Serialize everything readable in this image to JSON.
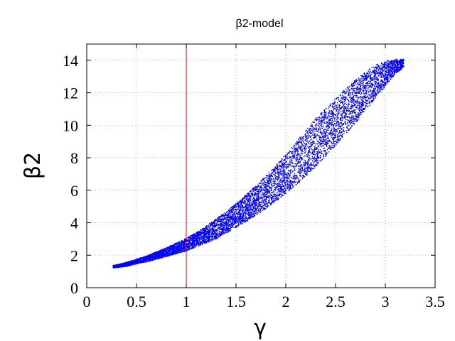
{
  "chart_data": {
    "type": "scatter",
    "title": "β2-model",
    "xlabel": "γ",
    "ylabel": "β2",
    "xlim": [
      0,
      3.5
    ],
    "ylim": [
      0,
      15
    ],
    "xticks": [
      0,
      0.5,
      1,
      1.5,
      2,
      2.5,
      3,
      3.5
    ],
    "xtick_labels": [
      "0",
      "0.5",
      "1",
      "1.5",
      "2",
      "2.5",
      "3",
      "3.5"
    ],
    "yticks": [
      0,
      2,
      4,
      6,
      8,
      10,
      12,
      14
    ],
    "ytick_labels": [
      "0",
      "2",
      "4",
      "6",
      "8",
      "10",
      "12",
      "14"
    ],
    "grid": true,
    "reference_line": {
      "orientation": "vertical",
      "x": 1,
      "color": "#dd0000"
    },
    "series": [
      {
        "marker": "point",
        "color": "#0000ff",
        "x": [
          0.26,
          0.3,
          0.4,
          0.5,
          0.6,
          0.7,
          0.8,
          0.9,
          1.0,
          1.1,
          1.2,
          1.3,
          1.4,
          1.5,
          1.6,
          1.7,
          1.8,
          1.9,
          2.0,
          2.1,
          2.2,
          2.3,
          2.4,
          2.5,
          2.6,
          2.7,
          2.8,
          2.9,
          3.0,
          3.1,
          3.18
        ],
        "y_lower": [
          1.25,
          1.27,
          1.35,
          1.5,
          1.62,
          1.78,
          1.95,
          2.12,
          2.3,
          2.55,
          2.8,
          3.05,
          3.4,
          3.75,
          4.1,
          4.5,
          4.9,
          5.35,
          5.85,
          6.35,
          6.9,
          7.5,
          8.15,
          8.8,
          9.5,
          10.2,
          10.95,
          11.7,
          12.45,
          13.2,
          13.6
        ],
        "y_upper": [
          1.4,
          1.45,
          1.6,
          1.8,
          2.0,
          2.25,
          2.5,
          2.8,
          3.1,
          3.45,
          3.85,
          4.3,
          4.75,
          5.25,
          5.8,
          6.35,
          6.95,
          7.6,
          8.3,
          9.0,
          9.75,
          10.5,
          11.1,
          11.7,
          12.3,
          12.85,
          13.35,
          13.75,
          14.0,
          14.1,
          14.1
        ]
      }
    ]
  }
}
